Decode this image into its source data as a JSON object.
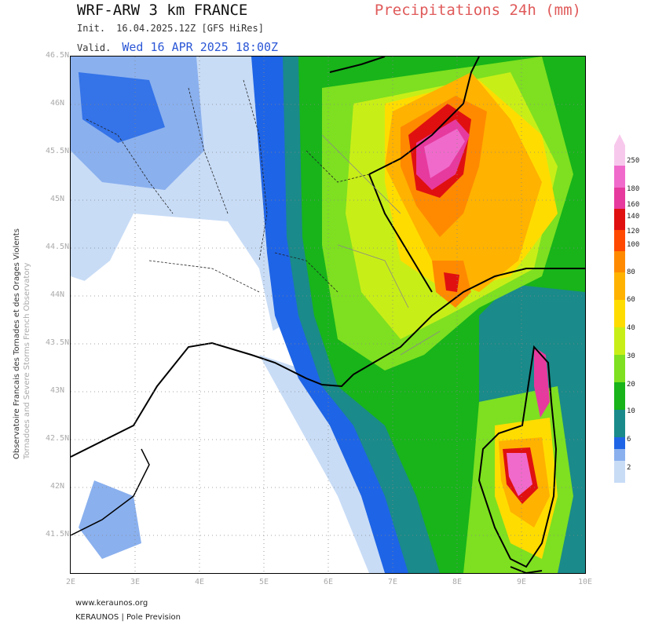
{
  "header": {
    "model_title": "WRF-ARW 3 km FRANCE",
    "product": "Precipitations 24h (mm)",
    "init_label": "Init.",
    "init_value": "16.04.2025.12Z [GFS HiRes]",
    "valid_label": "Valid.",
    "valid_value": "Wed 16 APR 2025 18:00Z"
  },
  "side_credit": {
    "line1": "Observatoire Francais des Tornades et des Orages Violents",
    "line2": "Tornadoes and Severe Storms French Observatory"
  },
  "axes": {
    "lat_labels": [
      "46.5N",
      "46N",
      "45.5N",
      "45N",
      "44.5N",
      "44N",
      "43.5N",
      "43N",
      "42.5N",
      "42N",
      "41.5N"
    ],
    "lon_labels": [
      "2E",
      "3E",
      "4E",
      "5E",
      "6E",
      "7E",
      "8E",
      "9E",
      "10E"
    ]
  },
  "legend": {
    "labels": [
      "250",
      "180",
      "160",
      "140",
      "120",
      "100",
      "80",
      "60",
      "40",
      "30",
      "20",
      "10",
      "6",
      "2"
    ],
    "colors": [
      "#f8c8ec",
      "#f06acb",
      "#e63a9e",
      "#e01010",
      "#ff4800",
      "#ff8a00",
      "#ffb200",
      "#ffdc00",
      "#c8ee18",
      "#7ee020",
      "#18b41a",
      "#1a8a8a",
      "#1e64e6",
      "#8ab0ee",
      "#c8dcf6",
      "#ffffff"
    ]
  },
  "footer": {
    "website": "www.keraunos.org",
    "org": "KERAUNOS | Pole Prevision"
  }
}
